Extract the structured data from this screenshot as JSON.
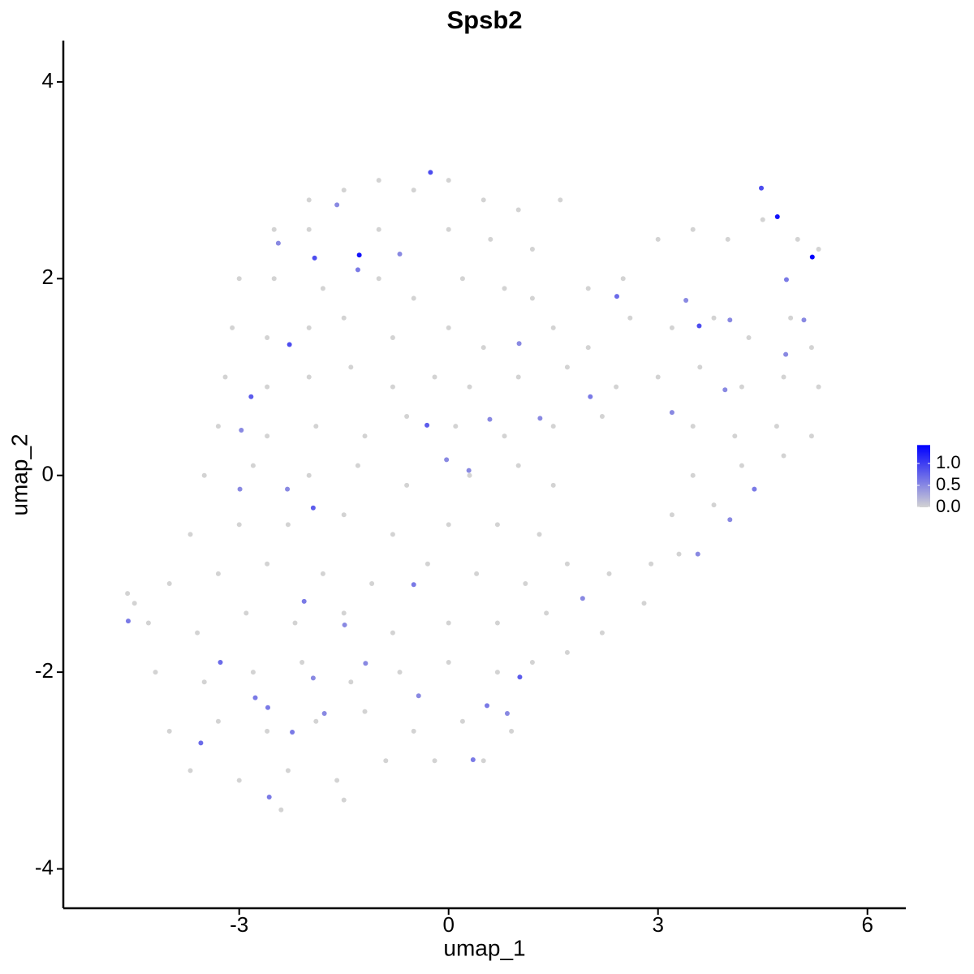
{
  "chart_data": {
    "type": "scatter",
    "title": "Spsb2",
    "x_label": "umap_1",
    "y_label": "umap_2",
    "x": [
      -2,
      -1.5,
      -1,
      -0.5,
      0,
      0.5,
      1,
      1.6,
      -2.5,
      -2,
      -1,
      0,
      0.6,
      1.2,
      -3,
      -2.5,
      -1.8,
      -1,
      -0.5,
      0.2,
      0.8,
      1.2,
      2,
      2.5,
      3,
      3.5,
      4,
      4.5,
      5,
      5.3,
      -3.1,
      -2.6,
      -2,
      -1.5,
      -0.8,
      0,
      0.5,
      1.5,
      2,
      2.6,
      3.2,
      3.8,
      4.3,
      4.9,
      5.2,
      -3.2,
      -2.6,
      -2,
      -1.4,
      -0.8,
      -0.2,
      0.3,
      1,
      1.7,
      2.4,
      3,
      3.6,
      4.2,
      4.8,
      5.3,
      -3.3,
      -2.6,
      -1.9,
      -1.2,
      -0.6,
      0.1,
      0.8,
      1.5,
      2.2,
      3.5,
      4.1,
      4.7,
      5.2,
      -3.5,
      -2.8,
      -2,
      -1.3,
      -0.6,
      0.3,
      1,
      1.5,
      3.5,
      4.2,
      4.8,
      -3.7,
      -3,
      -2.3,
      -1.5,
      -0.8,
      0,
      0.7,
      1.3,
      3.2,
      3.8,
      -4,
      -3.3,
      -2.6,
      -1.8,
      -1.1,
      -0.3,
      0.4,
      1.1,
      1.7,
      2.3,
      2.9,
      3.3,
      -4.3,
      -3.6,
      -2.9,
      -2.2,
      -1.5,
      -0.8,
      0,
      0.7,
      1.4,
      2.2,
      2.8,
      -4.2,
      -3.5,
      -2.8,
      -2.1,
      -1.4,
      -0.7,
      0,
      0.7,
      1.2,
      1.7,
      -4,
      -3.3,
      -2.6,
      -1.9,
      -1.2,
      -0.5,
      0.2,
      0.9,
      -3.7,
      -3,
      -2.3,
      -1.6,
      -0.9,
      -0.2,
      0.5,
      -2.4,
      -1.5,
      -4.6,
      -4.5,
      -1.28,
      -1.92,
      -2.28,
      -0.26,
      4.71,
      5.21,
      4.48,
      3.59,
      -0.31,
      -1.94,
      -2.83,
      -3.27,
      -3.55,
      1.02,
      0.35,
      -2.57,
      -4.59,
      -0.5,
      2.41,
      2.03,
      4.38,
      4.03,
      3.57,
      1.92,
      -1.3,
      -1.6,
      -2.44,
      -0.7,
      0.29,
      -0.03,
      0.59,
      1.31,
      1.01,
      -2.07,
      -2.99,
      -2.77,
      -2.24,
      -1.94,
      -1.49,
      -1.19,
      -0.43,
      0.55,
      0.84,
      -1.78,
      -2.59,
      4.84,
      4.83,
      4.03,
      5.09,
      3.96,
      3.2,
      3.4,
      -2.97,
      -2.31
    ],
    "y": [
      2.8,
      2.9,
      3.0,
      2.9,
      3.0,
      2.8,
      2.7,
      2.8,
      2.5,
      2.5,
      2.5,
      2.5,
      2.4,
      2.3,
      2.0,
      2.0,
      1.9,
      2.0,
      1.8,
      2.0,
      1.9,
      1.8,
      1.9,
      2.0,
      2.4,
      2.5,
      2.4,
      2.6,
      2.4,
      2.3,
      1.5,
      1.4,
      1.5,
      1.6,
      1.4,
      1.5,
      1.3,
      1.5,
      1.3,
      1.6,
      1.5,
      1.6,
      1.4,
      1.6,
      1.3,
      1.0,
      0.9,
      1.0,
      1.1,
      0.9,
      1.0,
      0.9,
      1.0,
      1.1,
      0.9,
      1.0,
      1.1,
      0.9,
      1.0,
      0.9,
      0.5,
      0.4,
      0.5,
      0.4,
      0.6,
      0.5,
      0.4,
      0.5,
      0.6,
      0.5,
      0.4,
      0.5,
      0.4,
      0,
      0.1,
      0,
      0.1,
      -0.1,
      0,
      0.1,
      -0.1,
      0,
      0.1,
      0.2,
      -0.6,
      -0.5,
      -0.5,
      -0.4,
      -0.6,
      -0.5,
      -0.5,
      -0.6,
      -0.4,
      -0.3,
      -1.1,
      -1.0,
      -0.9,
      -1.0,
      -1.1,
      -0.9,
      -1.0,
      -1.1,
      -0.9,
      -1.0,
      -0.9,
      -0.8,
      -1.5,
      -1.6,
      -1.4,
      -1.5,
      -1.4,
      -1.6,
      -1.5,
      -1.5,
      -1.4,
      -1.6,
      -1.3,
      -2.0,
      -2.1,
      -2.0,
      -1.9,
      -2.1,
      -2.0,
      -1.9,
      -2.0,
      -1.9,
      -1.8,
      -2.6,
      -2.5,
      -2.6,
      -2.5,
      -2.4,
      -2.6,
      -2.5,
      -2.6,
      -3.0,
      -3.1,
      -3.0,
      -3.1,
      -2.9,
      -2.9,
      -2.9,
      -3.4,
      -3.3,
      -1.2,
      -1.3,
      2.24,
      2.21,
      1.33,
      3.08,
      2.63,
      2.22,
      2.92,
      1.52,
      0.51,
      -0.33,
      0.8,
      -1.9,
      -2.72,
      -2.05,
      -2.89,
      -3.27,
      -1.48,
      -1.11,
      1.82,
      0.8,
      -0.14,
      -0.45,
      -0.8,
      -1.25,
      2.09,
      2.75,
      2.36,
      2.25,
      0.05,
      0.16,
      0.57,
      0.58,
      1.34,
      -1.28,
      -0.14,
      -2.26,
      -2.61,
      -2.06,
      -1.52,
      -1.91,
      -2.24,
      -2.34,
      -2.42,
      -2.42,
      -2.36,
      1.99,
      1.23,
      1.58,
      1.58,
      0.87,
      0.64,
      1.78,
      0.46,
      -0.14
    ],
    "values": [
      0,
      0,
      0,
      0,
      0,
      0,
      0,
      0,
      0,
      0,
      0,
      0,
      0,
      0,
      0,
      0,
      0,
      0,
      0,
      0,
      0,
      0,
      0,
      0,
      0,
      0,
      0,
      0,
      0,
      0,
      0,
      0,
      0,
      0,
      0,
      0,
      0,
      0,
      0,
      0,
      0,
      0,
      0,
      0,
      0,
      0,
      0,
      0,
      0,
      0,
      0,
      0,
      0,
      0,
      0,
      0,
      0,
      0,
      0,
      0,
      0,
      0,
      0,
      0,
      0,
      0,
      0,
      0,
      0,
      0,
      0,
      0,
      0,
      0,
      0,
      0,
      0,
      0,
      0,
      0,
      0,
      0,
      0,
      0,
      0,
      0,
      0,
      0,
      0,
      0,
      0,
      0,
      0,
      0,
      0,
      0,
      0,
      0,
      0,
      0,
      0,
      0,
      0,
      0,
      0,
      0,
      0,
      0,
      0,
      0,
      0,
      0,
      0,
      0,
      0,
      0,
      0,
      0,
      0,
      0,
      0,
      0,
      0,
      0,
      0,
      0,
      0,
      0,
      0,
      0,
      0,
      0,
      0,
      0,
      0,
      0,
      0,
      0,
      0,
      0,
      0,
      0,
      0,
      0,
      0,
      0,
      1.3,
      0.9,
      0.9,
      0.9,
      1.3,
      1.4,
      0.9,
      0.9,
      0.8,
      0.8,
      0.8,
      0.7,
      0.7,
      0.8,
      0.6,
      0.6,
      0.6,
      0.6,
      0.7,
      0.6,
      0.6,
      0.5,
      0.5,
      0.5,
      0.6,
      0.5,
      0.5,
      0.5,
      0.5,
      0.5,
      0.5,
      0.5,
      0.5,
      0.6,
      0.5,
      0.6,
      0.6,
      0.5,
      0.5,
      0.5,
      0.5,
      0.6,
      0.5,
      0.5,
      0.6,
      0.6,
      0.5,
      0.5,
      0.5,
      0.5,
      0.5,
      0.5,
      0.5,
      0.5
    ],
    "xlim": [
      -5.52,
      6.55
    ],
    "ylim": [
      -4.4,
      4.42
    ],
    "xticks": [
      -3,
      0,
      3,
      6
    ],
    "yticks": [
      -4,
      -2,
      0,
      2,
      4
    ],
    "colorbar": {
      "lim": [
        0,
        1.42
      ],
      "low": "#d3d3d3",
      "high": "#0000ff",
      "ticks": [
        {
          "value": 0,
          "label": "0.0"
        },
        {
          "value": 0.5,
          "label": "0.5"
        },
        {
          "value": 1,
          "label": "1.0"
        }
      ]
    }
  }
}
